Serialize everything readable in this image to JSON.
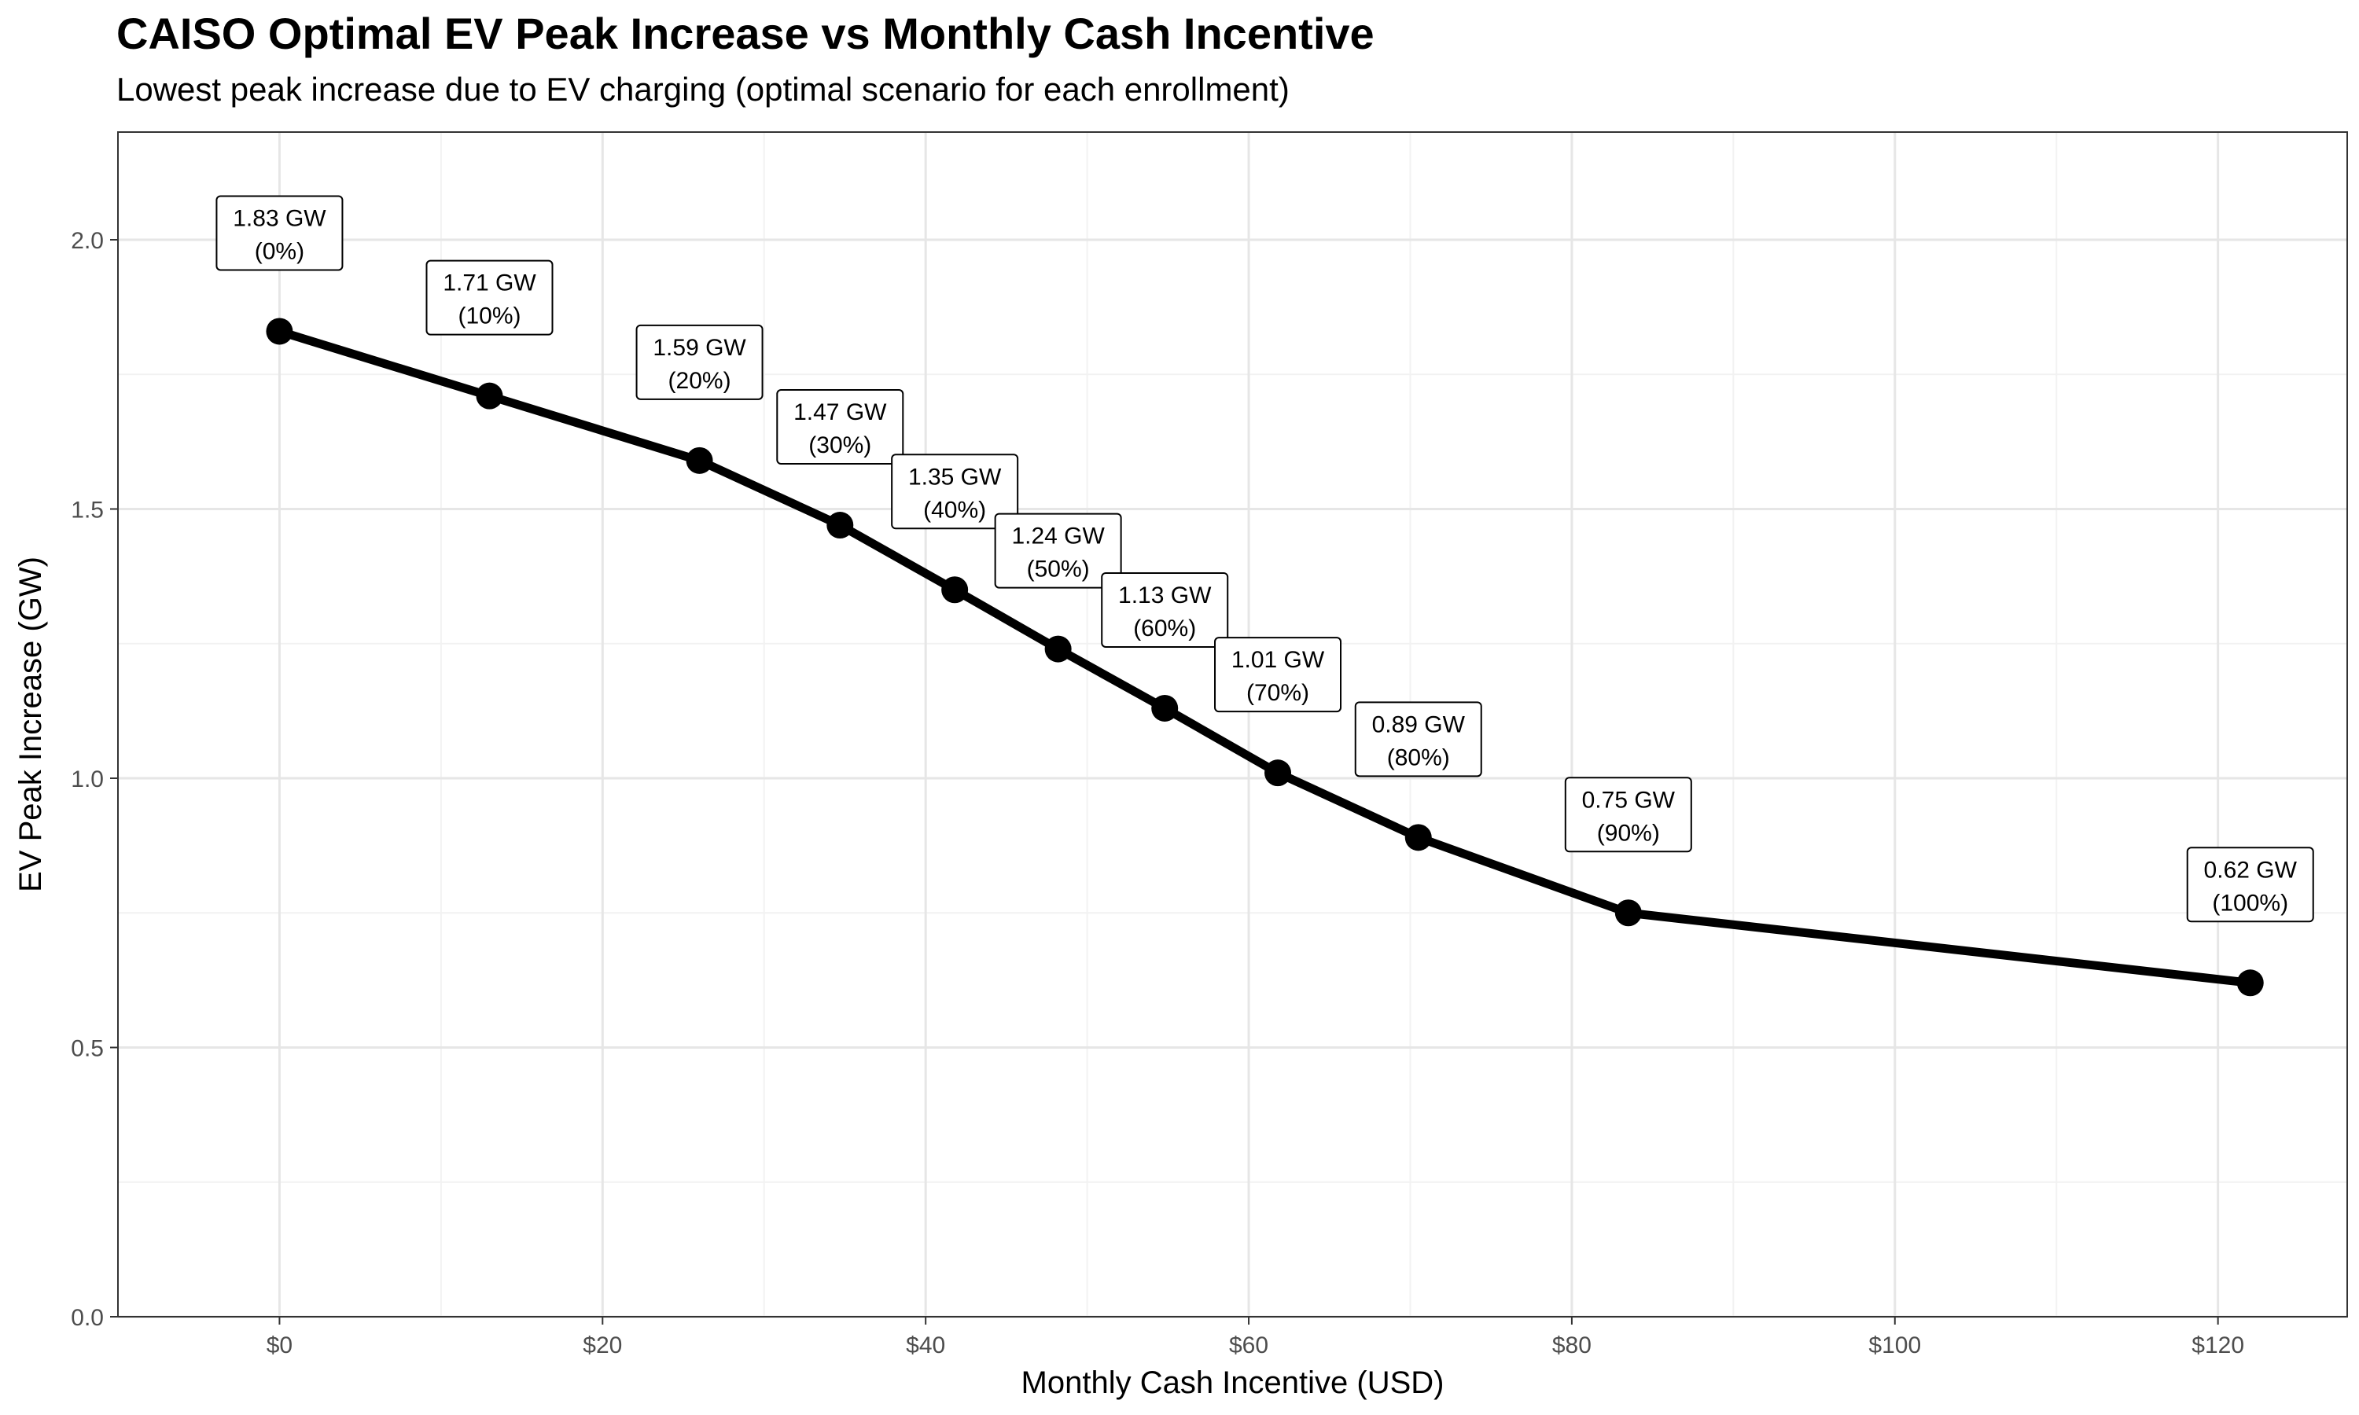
{
  "chart_data": {
    "type": "line",
    "title": "CAISO Optimal EV Peak Increase vs Monthly Cash Incentive",
    "subtitle": "Lowest peak increase due to EV charging (optimal scenario for each enrollment)",
    "xlabel": "Monthly Cash Incentive (USD)",
    "ylabel": "EV Peak Increase (GW)",
    "xlim": [
      -10,
      128
    ],
    "ylim": [
      0,
      2.2
    ],
    "x_ticks": [
      0,
      20,
      40,
      60,
      80,
      100,
      120
    ],
    "x_tick_labels": [
      "$0",
      "$20",
      "$40",
      "$60",
      "$80",
      "$100",
      "$120"
    ],
    "y_ticks": [
      0,
      0.5,
      1,
      1.5,
      2
    ],
    "y_tick_labels": [
      "0.0",
      "0.5",
      "1.0",
      "1.5",
      "2.0"
    ],
    "grid": true,
    "series": [
      {
        "color": "#000000",
        "points": [
          {
            "x": 0,
            "y": 1.83,
            "label": "1.83 GW",
            "sublabel": "(0%)"
          },
          {
            "x": 13,
            "y": 1.71,
            "label": "1.71 GW",
            "sublabel": "(10%)"
          },
          {
            "x": 26,
            "y": 1.59,
            "label": "1.59 GW",
            "sublabel": "(20%)"
          },
          {
            "x": 34.7,
            "y": 1.47,
            "label": "1.47 GW",
            "sublabel": "(30%)"
          },
          {
            "x": 41.8,
            "y": 1.35,
            "label": "1.35 GW",
            "sublabel": "(40%)"
          },
          {
            "x": 48.2,
            "y": 1.24,
            "label": "1.24 GW",
            "sublabel": "(50%)"
          },
          {
            "x": 54.8,
            "y": 1.13,
            "label": "1.13 GW",
            "sublabel": "(60%)"
          },
          {
            "x": 61.8,
            "y": 1.01,
            "label": "1.01 GW",
            "sublabel": "(70%)"
          },
          {
            "x": 70.5,
            "y": 0.89,
            "label": "0.89 GW",
            "sublabel": "(80%)"
          },
          {
            "x": 83.5,
            "y": 0.75,
            "label": "0.75 GW",
            "sublabel": "(90%)"
          },
          {
            "x": 122,
            "y": 0.62,
            "label": "0.62 GW",
            "sublabel": "(100%)"
          }
        ]
      }
    ]
  }
}
